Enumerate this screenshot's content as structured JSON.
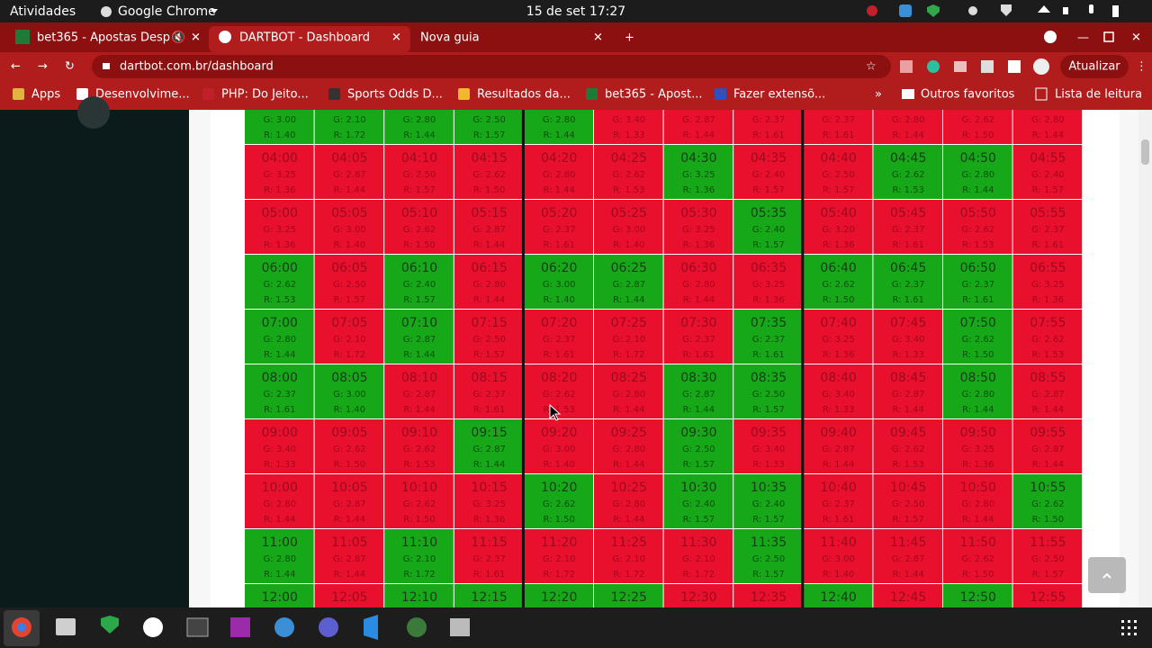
{
  "system_bar": {
    "activities": "Atividades",
    "app": "Google Chrome",
    "clock": "15 de set  17:27"
  },
  "tabs": [
    {
      "title": "bet365 - Apostas Desp"
    },
    {
      "title": "DARTBOT - Dashboard"
    },
    {
      "title": "Nova guia"
    }
  ],
  "address": "dartbot.com.br/dashboard",
  "update_button": "Atualizar",
  "bookmarks": [
    "Apps",
    "Desenvolvime...",
    "PHP: Do Jeito...",
    "Sports Odds D...",
    "Resultados da...",
    "bet365 - Apost...",
    "Fazer extensõ..."
  ],
  "other_bookmarks": "Outros favoritos",
  "reading_list": "Lista de leitura",
  "grid": {
    "colors": {
      "green": "#17a81a",
      "red": "#e9102d"
    },
    "rows": [
      {
        "cells": [
          {
            "g": "G: 3.00",
            "r": "R: 1.40",
            "color": "green"
          },
          {
            "g": "G: 2.10",
            "r": "R: 1.72",
            "color": "green"
          },
          {
            "g": "G: 2.80",
            "r": "R: 1.44",
            "color": "green"
          },
          {
            "g": "G: 2.50",
            "r": "R: 1.57",
            "color": "green"
          },
          {
            "g": "G: 2.80",
            "r": "R: 1.44",
            "color": "green"
          },
          {
            "g": "G: 3.40",
            "r": "R: 1.33",
            "color": "red"
          },
          {
            "g": "G: 2.87",
            "r": "R: 1.44",
            "color": "red"
          },
          {
            "g": "G: 2.37",
            "r": "R: 1.61",
            "color": "red"
          },
          {
            "g": "G: 2.37",
            "r": "R: 1.61",
            "color": "red"
          },
          {
            "g": "G: 2.80",
            "r": "R: 1.44",
            "color": "red"
          },
          {
            "g": "G: 2.62",
            "r": "R: 1.50",
            "color": "red"
          },
          {
            "g": "G: 2.80",
            "r": "R: 1.44",
            "color": "red"
          }
        ]
      },
      {
        "cells": [
          {
            "time": "04:00",
            "g": "G: 3.25",
            "r": "R: 1.36",
            "color": "red"
          },
          {
            "time": "04:05",
            "g": "G: 2.87",
            "r": "R: 1.44",
            "color": "red"
          },
          {
            "time": "04:10",
            "g": "G: 2.50",
            "r": "R: 1.57",
            "color": "red"
          },
          {
            "time": "04:15",
            "g": "G: 2.62",
            "r": "R: 1.50",
            "color": "red"
          },
          {
            "time": "04:20",
            "g": "G: 2.80",
            "r": "R: 1.44",
            "color": "red"
          },
          {
            "time": "04:25",
            "g": "G: 2.62",
            "r": "R: 1.53",
            "color": "red"
          },
          {
            "time": "04:30",
            "g": "G: 3.25",
            "r": "R: 1.36",
            "color": "green"
          },
          {
            "time": "04:35",
            "g": "G: 2.40",
            "r": "R: 1.57",
            "color": "red"
          },
          {
            "time": "04:40",
            "g": "G: 2.50",
            "r": "R: 1.57",
            "color": "red"
          },
          {
            "time": "04:45",
            "g": "G: 2.62",
            "r": "R: 1.53",
            "color": "green"
          },
          {
            "time": "04:50",
            "g": "G: 2.80",
            "r": "R: 1.44",
            "color": "green"
          },
          {
            "time": "04:55",
            "g": "G: 2.40",
            "r": "R: 1.57",
            "color": "red"
          }
        ]
      },
      {
        "cells": [
          {
            "time": "05:00",
            "g": "G: 3.25",
            "r": "R: 1.36",
            "color": "red"
          },
          {
            "time": "05:05",
            "g": "G: 3.00",
            "r": "R: 1.40",
            "color": "red"
          },
          {
            "time": "05:10",
            "g": "G: 2.62",
            "r": "R: 1.50",
            "color": "red"
          },
          {
            "time": "05:15",
            "g": "G: 2.87",
            "r": "R: 1.44",
            "color": "red"
          },
          {
            "time": "05:20",
            "g": "G: 2.37",
            "r": "R: 1.61",
            "color": "red"
          },
          {
            "time": "05:25",
            "g": "G: 3.00",
            "r": "R: 1.40",
            "color": "red"
          },
          {
            "time": "05:30",
            "g": "G: 3.25",
            "r": "R: 1.36",
            "color": "red"
          },
          {
            "time": "05:35",
            "g": "G: 2.40",
            "r": "R: 1.57",
            "color": "green"
          },
          {
            "time": "05:40",
            "g": "G: 3.20",
            "r": "R: 1.36",
            "color": "red"
          },
          {
            "time": "05:45",
            "g": "G: 2.37",
            "r": "R: 1.61",
            "color": "red"
          },
          {
            "time": "05:50",
            "g": "G: 2.62",
            "r": "R: 1.53",
            "color": "red"
          },
          {
            "time": "05:55",
            "g": "G: 2.37",
            "r": "R: 1.61",
            "color": "red"
          }
        ]
      },
      {
        "cells": [
          {
            "time": "06:00",
            "g": "G: 2.62",
            "r": "R: 1.53",
            "color": "green"
          },
          {
            "time": "06:05",
            "g": "G: 2.50",
            "r": "R: 1.57",
            "color": "red"
          },
          {
            "time": "06:10",
            "g": "G: 2.40",
            "r": "R: 1.57",
            "color": "green"
          },
          {
            "time": "06:15",
            "g": "G: 2.80",
            "r": "R: 1.44",
            "color": "red"
          },
          {
            "time": "06:20",
            "g": "G: 3.00",
            "r": "R: 1.40",
            "color": "green"
          },
          {
            "time": "06:25",
            "g": "G: 2.87",
            "r": "R: 1.44",
            "color": "green"
          },
          {
            "time": "06:30",
            "g": "G: 2.80",
            "r": "R: 1.44",
            "color": "red"
          },
          {
            "time": "06:35",
            "g": "G: 3.25",
            "r": "R: 1.36",
            "color": "red"
          },
          {
            "time": "06:40",
            "g": "G: 2.62",
            "r": "R: 1.50",
            "color": "green"
          },
          {
            "time": "06:45",
            "g": "G: 2.37",
            "r": "R: 1.61",
            "color": "green"
          },
          {
            "time": "06:50",
            "g": "G: 2.37",
            "r": "R: 1.61",
            "color": "green"
          },
          {
            "time": "06:55",
            "g": "G: 3.25",
            "r": "R: 1.36",
            "color": "red"
          }
        ]
      },
      {
        "cells": [
          {
            "time": "07:00",
            "g": "G: 2.80",
            "r": "R: 1.44",
            "color": "green"
          },
          {
            "time": "07:05",
            "g": "G: 2.10",
            "r": "R: 1.72",
            "color": "red"
          },
          {
            "time": "07:10",
            "g": "G: 2.87",
            "r": "R: 1.44",
            "color": "green"
          },
          {
            "time": "07:15",
            "g": "G: 2.50",
            "r": "R: 1.57",
            "color": "red"
          },
          {
            "time": "07:20",
            "g": "G: 2.37",
            "r": "R: 1.61",
            "color": "red"
          },
          {
            "time": "07:25",
            "g": "G: 2.10",
            "r": "R: 1.72",
            "color": "red"
          },
          {
            "time": "07:30",
            "g": "G: 2.37",
            "r": "R: 1.61",
            "color": "red"
          },
          {
            "time": "07:35",
            "g": "G: 2.37",
            "r": "R: 1.61",
            "color": "green"
          },
          {
            "time": "07:40",
            "g": "G: 3.25",
            "r": "R: 1.36",
            "color": "red"
          },
          {
            "time": "07:45",
            "g": "G: 3.40",
            "r": "R: 1.33",
            "color": "red"
          },
          {
            "time": "07:50",
            "g": "G: 2.62",
            "r": "R: 1.50",
            "color": "green"
          },
          {
            "time": "07:55",
            "g": "G: 2.62",
            "r": "R: 1.53",
            "color": "red"
          }
        ]
      },
      {
        "cells": [
          {
            "time": "08:00",
            "g": "G: 2.37",
            "r": "R: 1.61",
            "color": "green"
          },
          {
            "time": "08:05",
            "g": "G: 3.00",
            "r": "R: 1.40",
            "color": "green"
          },
          {
            "time": "08:10",
            "g": "G: 2.87",
            "r": "R: 1.44",
            "color": "red"
          },
          {
            "time": "08:15",
            "g": "G: 2.37",
            "r": "R: 1.61",
            "color": "red"
          },
          {
            "time": "08:20",
            "g": "G: 2.62",
            "r": "R: 1.53",
            "color": "red"
          },
          {
            "time": "08:25",
            "g": "G: 2.80",
            "r": "R: 1.44",
            "color": "red"
          },
          {
            "time": "08:30",
            "g": "G: 2.87",
            "r": "R: 1.44",
            "color": "green"
          },
          {
            "time": "08:35",
            "g": "G: 2.50",
            "r": "R: 1.57",
            "color": "green"
          },
          {
            "time": "08:40",
            "g": "G: 3.40",
            "r": "R: 1.33",
            "color": "red"
          },
          {
            "time": "08:45",
            "g": "G: 2.87",
            "r": "R: 1.44",
            "color": "red"
          },
          {
            "time": "08:50",
            "g": "G: 2.80",
            "r": "R: 1.44",
            "color": "green"
          },
          {
            "time": "08:55",
            "g": "G: 2.87",
            "r": "R: 1.44",
            "color": "red"
          }
        ]
      },
      {
        "cells": [
          {
            "time": "09:00",
            "g": "G: 3.40",
            "r": "R: 1.33",
            "color": "red"
          },
          {
            "time": "09:05",
            "g": "G: 2.62",
            "r": "R: 1.50",
            "color": "red"
          },
          {
            "time": "09:10",
            "g": "G: 2.62",
            "r": "R: 1.53",
            "color": "red"
          },
          {
            "time": "09:15",
            "g": "G: 2.87",
            "r": "R: 1.44",
            "color": "green"
          },
          {
            "time": "09:20",
            "g": "G: 3.00",
            "r": "R: 1.40",
            "color": "red"
          },
          {
            "time": "09:25",
            "g": "G: 2.80",
            "r": "R: 1.44",
            "color": "red"
          },
          {
            "time": "09:30",
            "g": "G: 2.50",
            "r": "R: 1.57",
            "color": "green"
          },
          {
            "time": "09:35",
            "g": "G: 3.40",
            "r": "R: 1.33",
            "color": "red"
          },
          {
            "time": "09:40",
            "g": "G: 2.87",
            "r": "R: 1.44",
            "color": "red"
          },
          {
            "time": "09:45",
            "g": "G: 2.62",
            "r": "R: 1.53",
            "color": "red"
          },
          {
            "time": "09:50",
            "g": "G: 3.25",
            "r": "R: 1.36",
            "color": "red"
          },
          {
            "time": "09:55",
            "g": "G: 2.87",
            "r": "R: 1.44",
            "color": "red"
          }
        ]
      },
      {
        "cells": [
          {
            "time": "10:00",
            "g": "G: 2.80",
            "r": "R: 1.44",
            "color": "red"
          },
          {
            "time": "10:05",
            "g": "G: 2.87",
            "r": "R: 1.44",
            "color": "red"
          },
          {
            "time": "10:10",
            "g": "G: 2.62",
            "r": "R: 1.50",
            "color": "red"
          },
          {
            "time": "10:15",
            "g": "G: 3.25",
            "r": "R: 1.36",
            "color": "red"
          },
          {
            "time": "10:20",
            "g": "G: 2.62",
            "r": "R: 1.50",
            "color": "green"
          },
          {
            "time": "10:25",
            "g": "G: 2.80",
            "r": "R: 1.44",
            "color": "red"
          },
          {
            "time": "10:30",
            "g": "G: 2.40",
            "r": "R: 1.57",
            "color": "green"
          },
          {
            "time": "10:35",
            "g": "G: 2.40",
            "r": "R: 1.57",
            "color": "green"
          },
          {
            "time": "10:40",
            "g": "G: 2.37",
            "r": "R: 1.61",
            "color": "red"
          },
          {
            "time": "10:45",
            "g": "G: 2.50",
            "r": "R: 1.57",
            "color": "red"
          },
          {
            "time": "10:50",
            "g": "G: 2.80",
            "r": "R: 1.44",
            "color": "red"
          },
          {
            "time": "10:55",
            "g": "G: 2.62",
            "r": "R: 1.50",
            "color": "green"
          }
        ]
      },
      {
        "cells": [
          {
            "time": "11:00",
            "g": "G: 2.80",
            "r": "R: 1.44",
            "color": "green"
          },
          {
            "time": "11:05",
            "g": "G: 2.87",
            "r": "R: 1.44",
            "color": "red"
          },
          {
            "time": "11:10",
            "g": "G: 2.10",
            "r": "R: 1.72",
            "color": "green"
          },
          {
            "time": "11:15",
            "g": "G: 2.37",
            "r": "R: 1.61",
            "color": "red"
          },
          {
            "time": "11:20",
            "g": "G: 2.10",
            "r": "R: 1.72",
            "color": "red"
          },
          {
            "time": "11:25",
            "g": "G: 2.10",
            "r": "R: 1.72",
            "color": "red"
          },
          {
            "time": "11:30",
            "g": "G: 2.10",
            "r": "R: 1.72",
            "color": "red"
          },
          {
            "time": "11:35",
            "g": "G: 2.50",
            "r": "R: 1.57",
            "color": "green"
          },
          {
            "time": "11:40",
            "g": "G: 3.00",
            "r": "R: 1.40",
            "color": "red"
          },
          {
            "time": "11:45",
            "g": "G: 2.87",
            "r": "R: 1.44",
            "color": "red"
          },
          {
            "time": "11:50",
            "g": "G: 2.62",
            "r": "R: 1.50",
            "color": "red"
          },
          {
            "time": "11:55",
            "g": "G: 2.50",
            "r": "R: 1.57",
            "color": "red"
          }
        ]
      },
      {
        "cells": [
          {
            "time": "12:00",
            "color": "green"
          },
          {
            "time": "12:05",
            "color": "red"
          },
          {
            "time": "12:10",
            "color": "green"
          },
          {
            "time": "12:15",
            "color": "green"
          },
          {
            "time": "12:20",
            "color": "green"
          },
          {
            "time": "12:25",
            "color": "green"
          },
          {
            "time": "12:30",
            "color": "red"
          },
          {
            "time": "12:35",
            "color": "red"
          },
          {
            "time": "12:40",
            "color": "green"
          },
          {
            "time": "12:45",
            "color": "red"
          },
          {
            "time": "12:50",
            "color": "green"
          },
          {
            "time": "12:55",
            "color": "red"
          }
        ]
      }
    ]
  }
}
